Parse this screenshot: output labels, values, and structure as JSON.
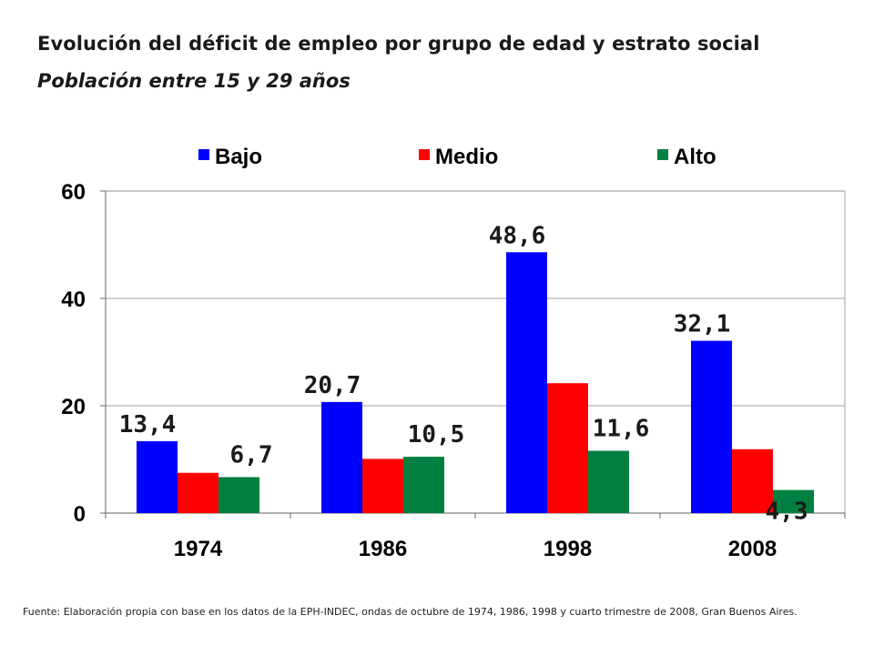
{
  "header": {
    "title": "Evolución del déficit de empleo por grupo de edad y estrato social",
    "subtitle": "Población entre 15 y 29 años"
  },
  "footer": {
    "source": "Fuente: Elaboración propia con base en los datos de la EPH-INDEC, ondas de octubre de 1974,  1986,  1998  y cuarto trimestre de 2008,  Gran Buenos Aires."
  },
  "chart_data": {
    "type": "bar",
    "categories": [
      "1974",
      "1986",
      "1998",
      "2008"
    ],
    "series": [
      {
        "name": "Bajo",
        "color": "#0000ff",
        "values": [
          13.4,
          20.7,
          48.6,
          32.1
        ],
        "labels": [
          "13,4",
          "20,7",
          "48,6",
          "32,1"
        ]
      },
      {
        "name": "Medio",
        "color": "#ff0000",
        "values": [
          7.5,
          10.1,
          24.2,
          11.9
        ],
        "labels": [
          "",
          "",
          "",
          ""
        ]
      },
      {
        "name": "Alto",
        "color": "#008040",
        "values": [
          6.7,
          10.5,
          11.6,
          4.3
        ],
        "labels": [
          "6,7",
          "10,5",
          "11,6",
          "4,3"
        ]
      }
    ],
    "yticks": [
      0,
      20,
      40,
      60
    ],
    "ylim": [
      0,
      60
    ],
    "grid": true,
    "legend": "top",
    "title": "",
    "xlabel": "",
    "ylabel": ""
  }
}
